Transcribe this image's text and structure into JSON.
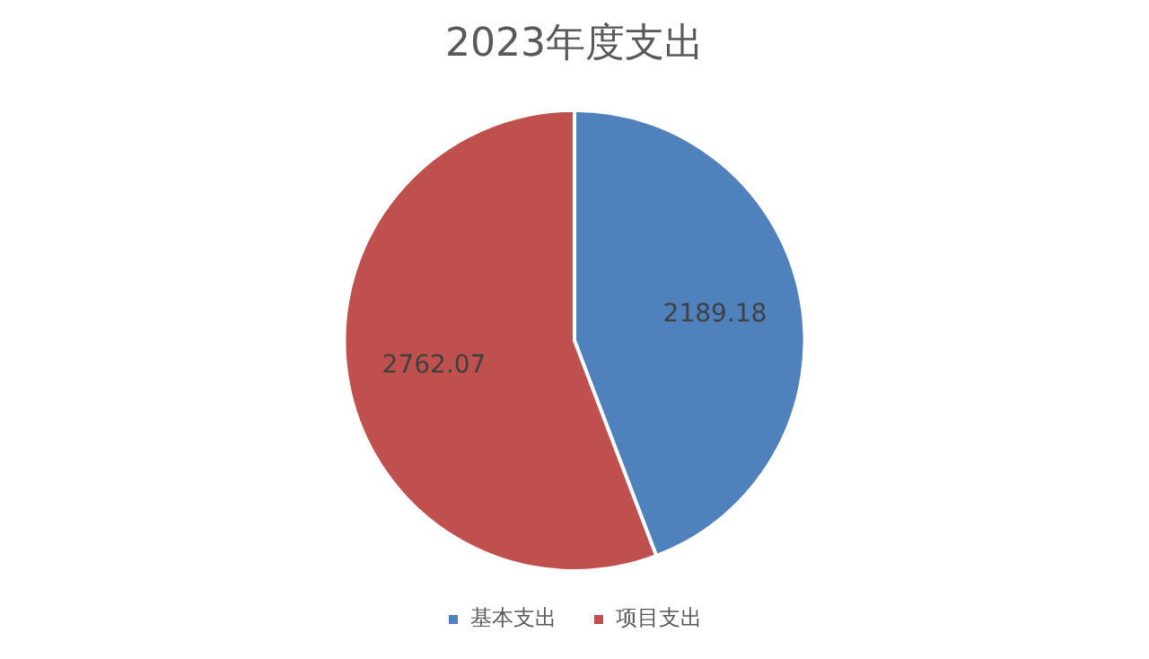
{
  "chart_data": {
    "type": "pie",
    "title": "2023年度支出",
    "categories": [
      "基本支出",
      "项目支出"
    ],
    "values": [
      2189.18,
      2762.07
    ],
    "colors": [
      "#4f81bd",
      "#c0504d"
    ],
    "data_labels": true,
    "legend": "bottom"
  }
}
